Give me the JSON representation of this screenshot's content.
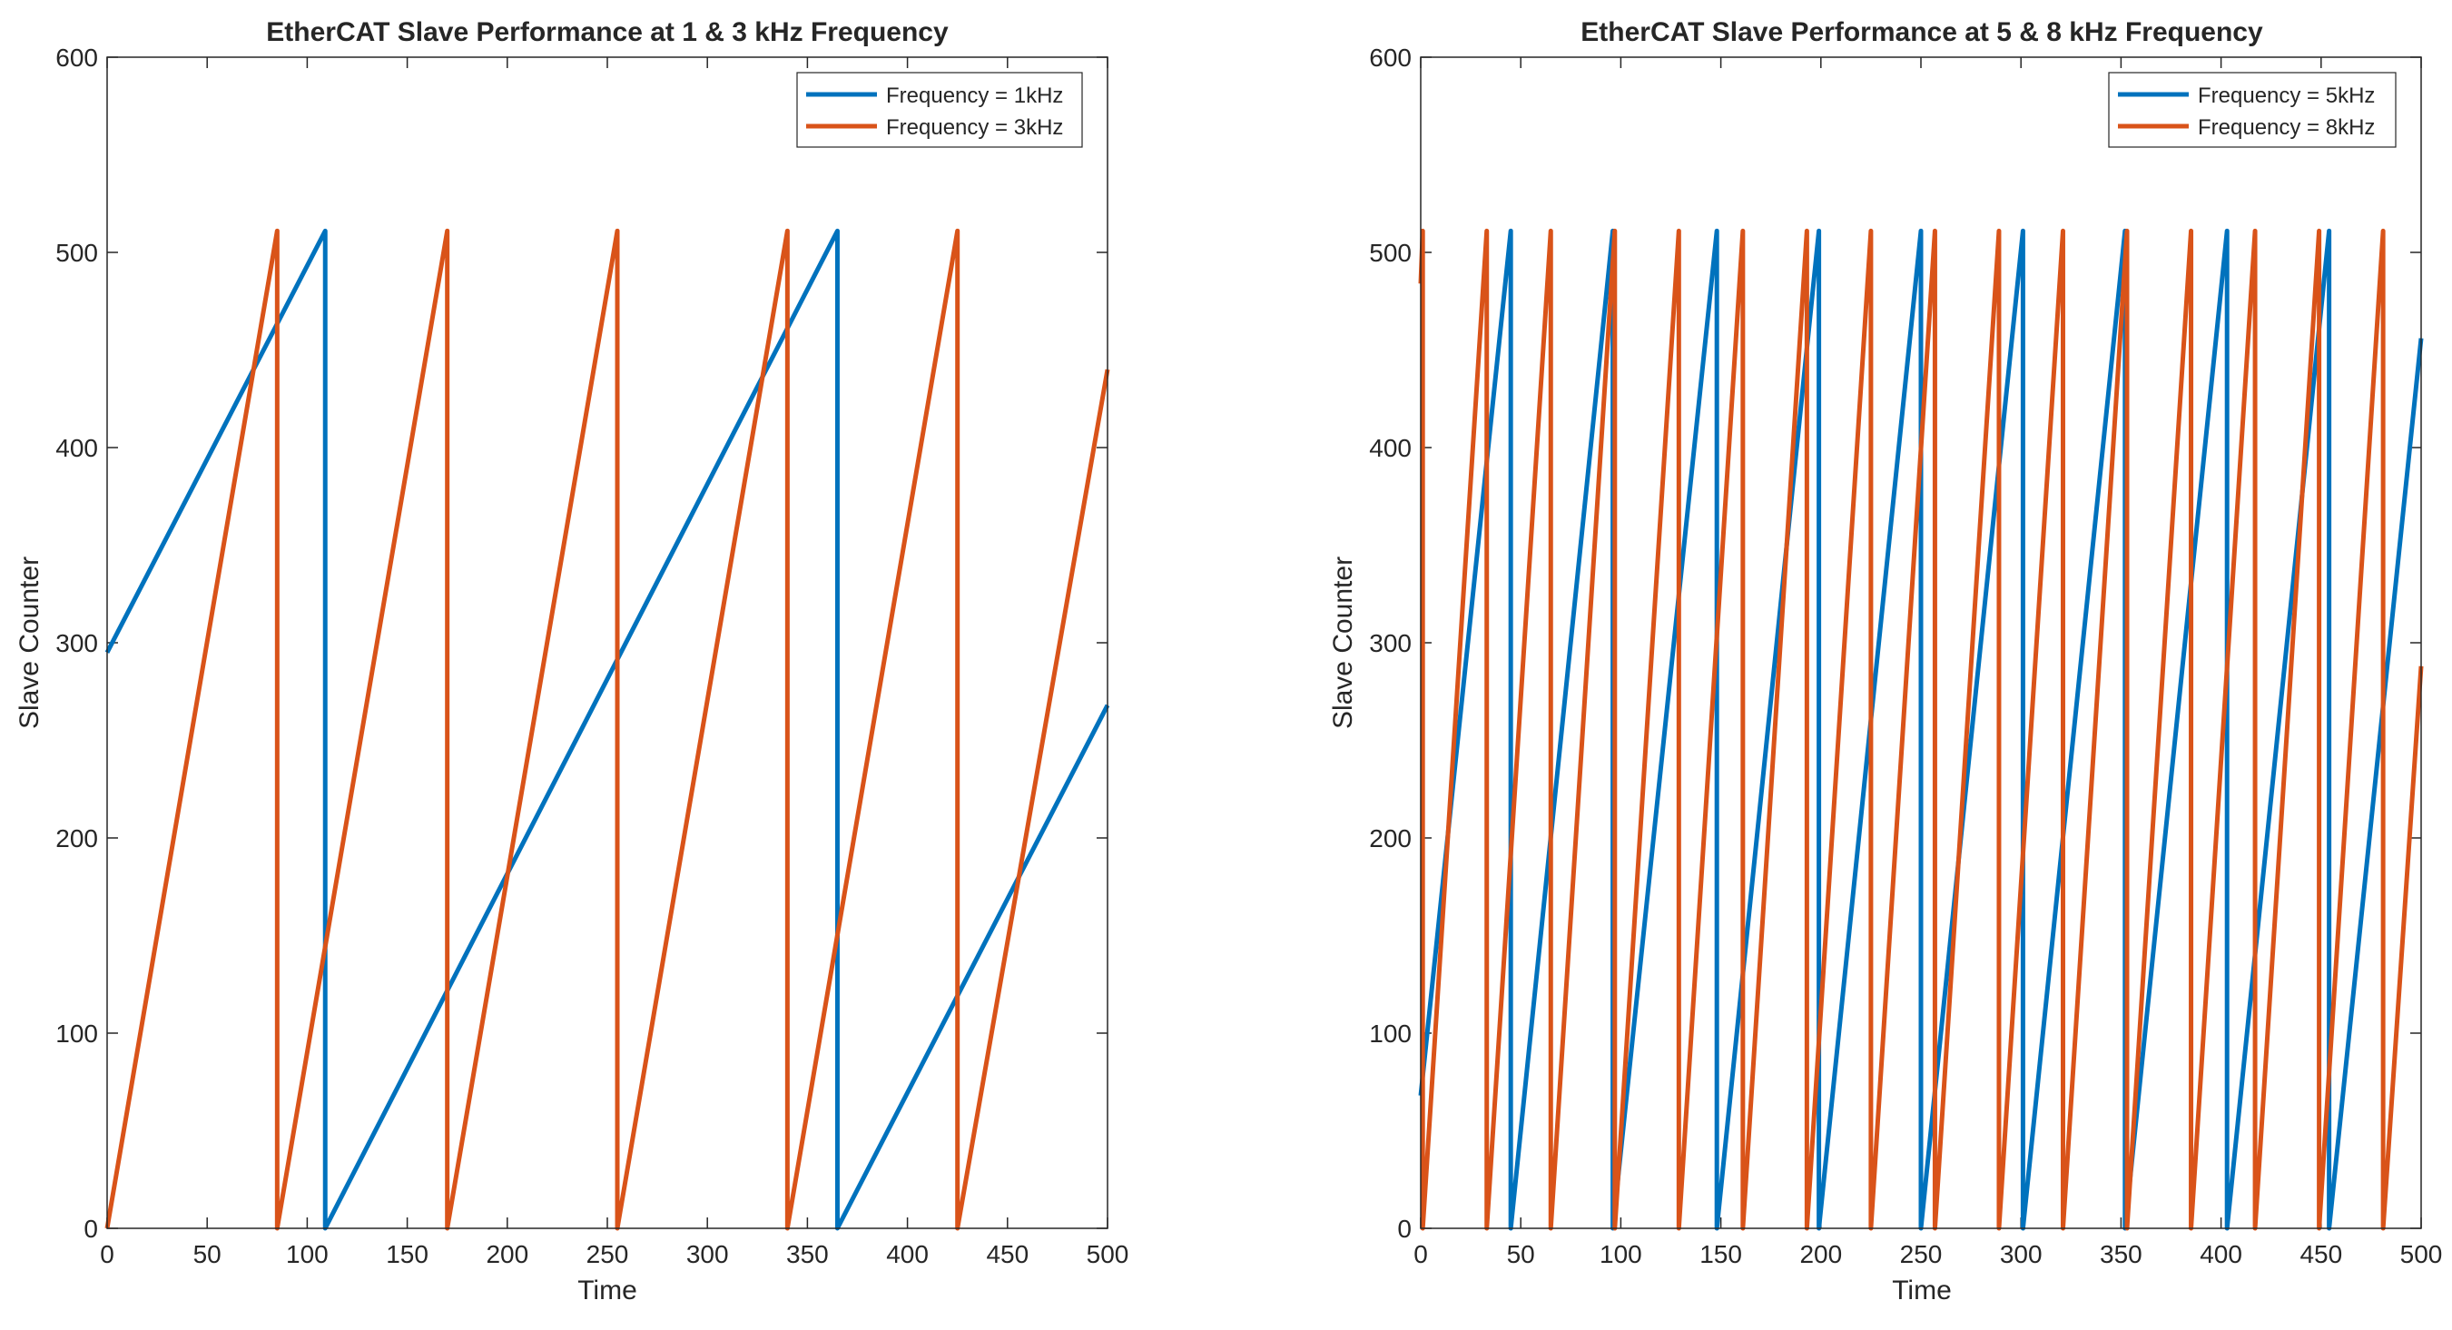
{
  "chart_data": [
    {
      "type": "line",
      "title": "EtherCAT Slave Performance at 1 & 3 kHz Frequency",
      "xlabel": "Time",
      "ylabel": "Slave Counter",
      "xlim": [
        0,
        500
      ],
      "ylim": [
        0,
        600
      ],
      "xticks": [
        "0",
        "50",
        "100",
        "150",
        "200",
        "250",
        "300",
        "350",
        "400",
        "450",
        "500"
      ],
      "yticks": [
        "0",
        "100",
        "200",
        "300",
        "400",
        "500",
        "600"
      ],
      "legend_position": "top-right",
      "series": [
        {
          "name": "Frequency = 1kHz",
          "color": "#0072BD",
          "x": [
            0,
            109,
            109,
            365,
            365,
            500
          ],
          "y": [
            295,
            511,
            0,
            511,
            0,
            268
          ]
        },
        {
          "name": "Frequency = 3kHz",
          "color": "#D95319",
          "x": [
            0,
            85,
            85,
            170,
            170,
            255,
            255,
            340,
            340,
            425,
            425,
            500
          ],
          "y": [
            0,
            511,
            0,
            511,
            0,
            511,
            0,
            511,
            0,
            511,
            0,
            440
          ]
        }
      ]
    },
    {
      "type": "line",
      "title": "EtherCAT Slave Performance at 5 & 8 kHz Frequency",
      "xlabel": "Time",
      "ylabel": "Slave Counter",
      "xlim": [
        0,
        500
      ],
      "ylim": [
        0,
        600
      ],
      "xticks": [
        "0",
        "50",
        "100",
        "150",
        "200",
        "250",
        "300",
        "350",
        "400",
        "450",
        "500"
      ],
      "yticks": [
        "0",
        "100",
        "200",
        "300",
        "400",
        "500",
        "600"
      ],
      "legend_position": "top-right",
      "series": [
        {
          "name": "Frequency = 5kHz",
          "color": "#0072BD",
          "x": [
            0,
            45,
            45,
            96,
            96,
            148,
            148,
            199,
            199,
            250,
            250,
            301,
            301,
            352,
            352,
            403,
            403,
            454,
            454,
            500
          ],
          "y": [
            68,
            511,
            0,
            511,
            0,
            511,
            0,
            511,
            0,
            511,
            0,
            511,
            0,
            511,
            0,
            511,
            0,
            511,
            0,
            456
          ]
        },
        {
          "name": "Frequency = 8kHz",
          "color": "#D95319",
          "x": [
            0,
            1,
            1,
            1,
            1,
            33,
            33,
            65,
            65,
            97,
            97,
            129,
            129,
            161,
            161,
            193,
            193,
            225,
            225,
            257,
            257,
            289,
            289,
            321,
            321,
            353,
            353,
            385,
            385,
            417,
            417,
            449,
            449,
            481,
            481,
            500
          ],
          "y": [
            484,
            511,
            0,
            0,
            0,
            511,
            0,
            511,
            0,
            511,
            0,
            511,
            0,
            511,
            0,
            511,
            0,
            511,
            0,
            511,
            0,
            511,
            0,
            511,
            0,
            511,
            0,
            511,
            0,
            511,
            0,
            511,
            0,
            511,
            0,
            288
          ]
        }
      ]
    }
  ]
}
